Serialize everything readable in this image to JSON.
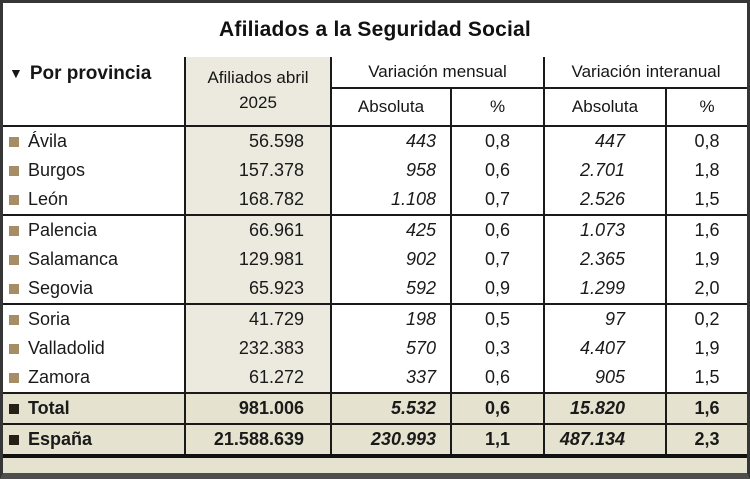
{
  "title": "Afiliados a la Seguridad Social",
  "header": {
    "sort_icon": "▼",
    "province": "Por provincia",
    "afiliados": "Afiliados abril 2025",
    "variacion_mensual": "Variación mensual",
    "variacion_interanual": "Variación interanual",
    "absoluta": "Absoluta",
    "pct": "%"
  },
  "chart_data": {
    "type": "table",
    "title": "Afiliados a la Seguridad Social",
    "columns": [
      "Por provincia",
      "Afiliados abril 2025",
      "Variación mensual Absoluta",
      "Variación mensual %",
      "Variación interanual Absoluta",
      "Variación interanual %"
    ],
    "rows": [
      {
        "label": "Ávila",
        "afiliados": "56.598",
        "mensual_abs": "443",
        "mensual_pct": "0,8",
        "interanual_abs": "447",
        "interanual_pct": "0,8",
        "summary": false,
        "group_end": false
      },
      {
        "label": "Burgos",
        "afiliados": "157.378",
        "mensual_abs": "958",
        "mensual_pct": "0,6",
        "interanual_abs": "2.701",
        "interanual_pct": "1,8",
        "summary": false,
        "group_end": false
      },
      {
        "label": "León",
        "afiliados": "168.782",
        "mensual_abs": "1.108",
        "mensual_pct": "0,7",
        "interanual_abs": "2.526",
        "interanual_pct": "1,5",
        "summary": false,
        "group_end": true
      },
      {
        "label": "Palencia",
        "afiliados": "66.961",
        "mensual_abs": "425",
        "mensual_pct": "0,6",
        "interanual_abs": "1.073",
        "interanual_pct": "1,6",
        "summary": false,
        "group_end": false
      },
      {
        "label": "Salamanca",
        "afiliados": "129.981",
        "mensual_abs": "902",
        "mensual_pct": "0,7",
        "interanual_abs": "2.365",
        "interanual_pct": "1,9",
        "summary": false,
        "group_end": false
      },
      {
        "label": "Segovia",
        "afiliados": "65.923",
        "mensual_abs": "592",
        "mensual_pct": "0,9",
        "interanual_abs": "1.299",
        "interanual_pct": "2,0",
        "summary": false,
        "group_end": true
      },
      {
        "label": "Soria",
        "afiliados": "41.729",
        "mensual_abs": "198",
        "mensual_pct": "0,5",
        "interanual_abs": "97",
        "interanual_pct": "0,2",
        "summary": false,
        "group_end": false
      },
      {
        "label": "Valladolid",
        "afiliados": "232.383",
        "mensual_abs": "570",
        "mensual_pct": "0,3",
        "interanual_abs": "4.407",
        "interanual_pct": "1,9",
        "summary": false,
        "group_end": false
      },
      {
        "label": "Zamora",
        "afiliados": "61.272",
        "mensual_abs": "337",
        "mensual_pct": "0,6",
        "interanual_abs": "905",
        "interanual_pct": "1,5",
        "summary": false,
        "group_end": true
      },
      {
        "label": "Total",
        "afiliados": "981.006",
        "mensual_abs": "5.532",
        "mensual_pct": "0,6",
        "interanual_abs": "15.820",
        "interanual_pct": "1,6",
        "summary": true,
        "group_end": false
      },
      {
        "label": "España",
        "afiliados": "21.588.639",
        "mensual_abs": "230.993",
        "mensual_pct": "1,1",
        "interanual_abs": "487.134",
        "interanual_pct": "2,3",
        "summary": true,
        "group_end": false
      }
    ]
  },
  "colors": {
    "afiliados_column_bg": "#ECEADF",
    "summary_row_bg": "#E5E3CF",
    "bullet_tan": "#A78D66",
    "bullet_dark": "#261F15",
    "line": "#1A1A1A",
    "frame": "#363636",
    "frame_bottom": "#4E4E4E"
  }
}
